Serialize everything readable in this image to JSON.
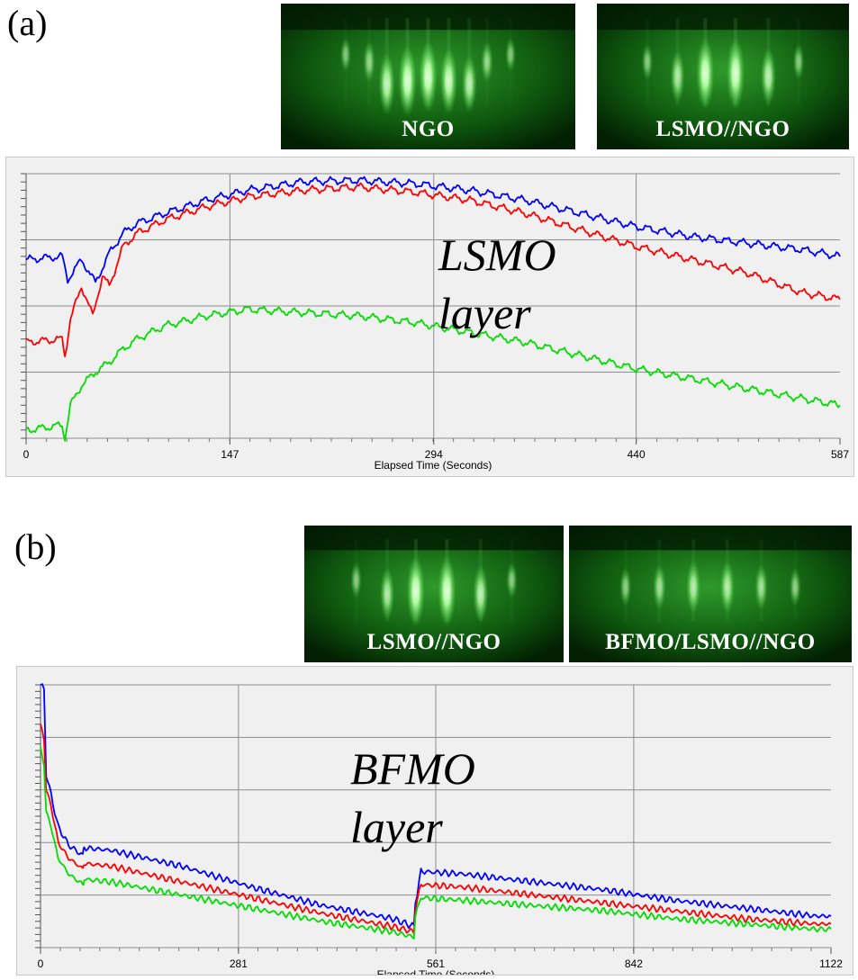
{
  "panels": [
    {
      "label": "(a)",
      "images": [
        {
          "caption": "NGO",
          "pattern": "ngo"
        },
        {
          "caption": "LSMO//NGO",
          "pattern": "lsmo"
        }
      ],
      "annotation": [
        "LSMO",
        "layer"
      ]
    },
    {
      "label": "(b)",
      "images": [
        {
          "caption": "LSMO//NGO",
          "pattern": "lsmo"
        },
        {
          "caption": "BFMO/LSMO//NGO",
          "pattern": "bfmo"
        }
      ],
      "annotation": [
        "BFMO",
        "layer"
      ]
    }
  ],
  "chart_data": [
    {
      "type": "line",
      "title": "",
      "xlabel": "Elapsed Time (Seconds)",
      "ylabel": "",
      "xlim": [
        0,
        587
      ],
      "ylim": [
        0,
        4
      ],
      "xticks": [
        0,
        147,
        294,
        440,
        587
      ],
      "grid": true,
      "series": [
        {
          "color": "#0000ff",
          "points": [
            [
              0,
              2.7
            ],
            [
              26,
              2.75
            ],
            [
              30,
              2.4
            ],
            [
              40,
              2.7
            ],
            [
              50,
              2.35
            ],
            [
              60,
              2.8
            ],
            [
              70,
              3.1
            ],
            [
              80,
              3.25
            ],
            [
              100,
              3.4
            ],
            [
              130,
              3.6
            ],
            [
              160,
              3.75
            ],
            [
              200,
              3.88
            ],
            [
              240,
              3.9
            ],
            [
              280,
              3.85
            ],
            [
              320,
              3.75
            ],
            [
              360,
              3.6
            ],
            [
              400,
              3.4
            ],
            [
              440,
              3.2
            ],
            [
              480,
              3.05
            ],
            [
              520,
              2.95
            ],
            [
              560,
              2.85
            ],
            [
              587,
              2.75
            ]
          ]
        },
        {
          "color": "#ff0000",
          "points": [
            [
              0,
              1.45
            ],
            [
              26,
              1.5
            ],
            [
              28,
              1.25
            ],
            [
              32,
              1.8
            ],
            [
              40,
              2.3
            ],
            [
              48,
              1.85
            ],
            [
              55,
              2.45
            ],
            [
              60,
              2.3
            ],
            [
              70,
              2.9
            ],
            [
              80,
              3.1
            ],
            [
              100,
              3.3
            ],
            [
              130,
              3.5
            ],
            [
              160,
              3.65
            ],
            [
              200,
              3.75
            ],
            [
              240,
              3.8
            ],
            [
              280,
              3.72
            ],
            [
              320,
              3.6
            ],
            [
              360,
              3.4
            ],
            [
              400,
              3.15
            ],
            [
              440,
              2.9
            ],
            [
              480,
              2.7
            ],
            [
              520,
              2.5
            ],
            [
              560,
              2.2
            ],
            [
              587,
              2.1
            ]
          ]
        },
        {
          "color": "#00dd00",
          "points": [
            [
              0,
              0.12
            ],
            [
              26,
              0.2
            ],
            [
              28,
              0.0
            ],
            [
              32,
              0.5
            ],
            [
              40,
              0.8
            ],
            [
              50,
              1.0
            ],
            [
              60,
              1.15
            ],
            [
              70,
              1.35
            ],
            [
              80,
              1.5
            ],
            [
              100,
              1.7
            ],
            [
              130,
              1.85
            ],
            [
              160,
              1.95
            ],
            [
              200,
              1.9
            ],
            [
              240,
              1.85
            ],
            [
              280,
              1.75
            ],
            [
              320,
              1.6
            ],
            [
              360,
              1.45
            ],
            [
              400,
              1.25
            ],
            [
              440,
              1.05
            ],
            [
              480,
              0.9
            ],
            [
              520,
              0.75
            ],
            [
              560,
              0.6
            ],
            [
              587,
              0.5
            ]
          ]
        }
      ]
    },
    {
      "type": "line",
      "title": "",
      "xlabel": "Elapsed Time (Seconds)",
      "ylabel": "",
      "xlim": [
        0,
        1122
      ],
      "ylim": [
        0,
        5
      ],
      "xticks": [
        0,
        281,
        561,
        842,
        1122
      ],
      "grid": true,
      "series": [
        {
          "color": "#0000ff",
          "points": [
            [
              0,
              5.0
            ],
            [
              5,
              4.9
            ],
            [
              8,
              3.3
            ],
            [
              15,
              2.9
            ],
            [
              25,
              2.3
            ],
            [
              40,
              1.95
            ],
            [
              60,
              1.75
            ],
            [
              62,
              1.9
            ],
            [
              100,
              1.85
            ],
            [
              200,
              1.55
            ],
            [
              300,
              1.15
            ],
            [
              400,
              0.8
            ],
            [
              500,
              0.55
            ],
            [
              530,
              0.4
            ],
            [
              532,
              0.85
            ],
            [
              540,
              1.45
            ],
            [
              600,
              1.4
            ],
            [
              700,
              1.25
            ],
            [
              800,
              1.1
            ],
            [
              900,
              0.9
            ],
            [
              1000,
              0.75
            ],
            [
              1100,
              0.6
            ],
            [
              1122,
              0.6
            ]
          ]
        },
        {
          "color": "#ff0000",
          "points": [
            [
              0,
              4.2
            ],
            [
              5,
              4.0
            ],
            [
              8,
              3.0
            ],
            [
              15,
              2.7
            ],
            [
              25,
              2.0
            ],
            [
              40,
              1.7
            ],
            [
              60,
              1.5
            ],
            [
              62,
              1.6
            ],
            [
              100,
              1.55
            ],
            [
              200,
              1.25
            ],
            [
              300,
              0.95
            ],
            [
              400,
              0.65
            ],
            [
              500,
              0.4
            ],
            [
              530,
              0.3
            ],
            [
              532,
              0.75
            ],
            [
              540,
              1.2
            ],
            [
              600,
              1.15
            ],
            [
              700,
              1.0
            ],
            [
              800,
              0.85
            ],
            [
              900,
              0.7
            ],
            [
              1000,
              0.55
            ],
            [
              1100,
              0.45
            ],
            [
              1122,
              0.45
            ]
          ]
        },
        {
          "color": "#00dd00",
          "points": [
            [
              0,
              3.8
            ],
            [
              5,
              3.5
            ],
            [
              8,
              2.6
            ],
            [
              15,
              2.3
            ],
            [
              25,
              1.7
            ],
            [
              40,
              1.4
            ],
            [
              60,
              1.2
            ],
            [
              62,
              1.3
            ],
            [
              100,
              1.25
            ],
            [
              200,
              1.0
            ],
            [
              300,
              0.75
            ],
            [
              400,
              0.5
            ],
            [
              500,
              0.3
            ],
            [
              530,
              0.2
            ],
            [
              532,
              0.6
            ],
            [
              540,
              0.95
            ],
            [
              600,
              0.9
            ],
            [
              700,
              0.8
            ],
            [
              800,
              0.7
            ],
            [
              900,
              0.55
            ],
            [
              1000,
              0.45
            ],
            [
              1100,
              0.35
            ],
            [
              1122,
              0.35
            ]
          ]
        }
      ]
    }
  ]
}
